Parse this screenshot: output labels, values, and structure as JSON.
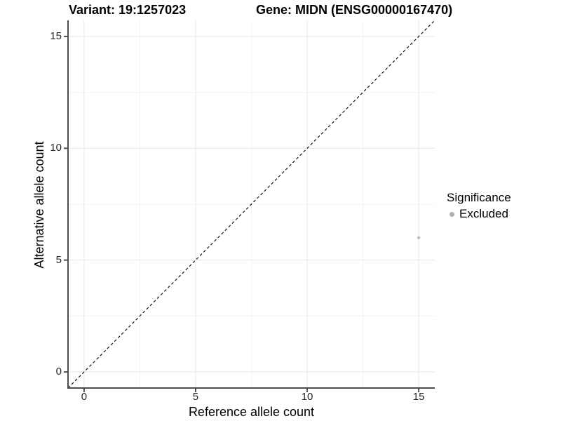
{
  "titles": {
    "variant": "Variant: 19:1257023",
    "gene": "Gene: MIDN (ENSG00000167470)"
  },
  "chart_data": {
    "type": "scatter",
    "title_left": "Variant: 19:1257023",
    "title_right": "Gene: MIDN (ENSG00000167470)",
    "xlabel": "Reference allele count",
    "ylabel": "Alternative allele count",
    "xlim": [
      -0.72,
      15.72
    ],
    "ylim": [
      -0.72,
      15.72
    ],
    "x_ticks": [
      0,
      5,
      10,
      15
    ],
    "y_ticks": [
      0,
      5,
      10,
      15
    ],
    "x_minor_ticks": [
      2.5,
      7.5,
      12.5
    ],
    "y_minor_ticks": [
      2.5,
      7.5,
      12.5
    ],
    "grid": "major+minor",
    "aspect": "equal",
    "identity_line": {
      "slope": 1,
      "intercept": 0,
      "linetype": "dashed",
      "color": "#000000"
    },
    "series": [
      {
        "name": "Excluded",
        "color": "#bdbdbd",
        "point_radius": 2.2,
        "points": [
          {
            "x": 15,
            "y": 6
          }
        ]
      }
    ],
    "legend": {
      "title": "Significance",
      "position": "right",
      "entries": [
        {
          "label": "Excluded",
          "color": "#b0b0b0"
        }
      ]
    }
  },
  "style": {
    "background": "#ffffff",
    "axis_line_color": "#4d4d4d",
    "tick_color": "#4d4d4d",
    "grid_major_color": "#e7e7e7",
    "grid_minor_color": "#f3f3f3",
    "tick_label_color": "#262626"
  }
}
